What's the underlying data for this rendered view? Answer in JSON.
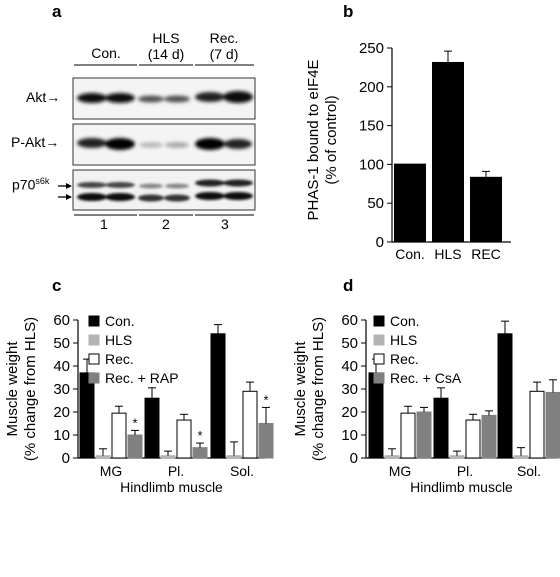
{
  "panels": {
    "a": {
      "letter": "a",
      "column_groups": [
        "Con.",
        "HLS\n(14 d)",
        "Rec.\n(7 d)"
      ],
      "column_group_lines": [
        [
          "Con."
        ],
        [
          "HLS",
          "(14 d)"
        ],
        [
          "Rec.",
          "(7 d)"
        ]
      ],
      "blots": [
        {
          "label": "Akt"
        },
        {
          "label": "P-Akt"
        },
        {
          "label": "p70",
          "superscript": "s6k"
        }
      ],
      "lanes": [
        "1",
        "2",
        "3"
      ]
    },
    "b": {
      "letter": "b"
    },
    "c": {
      "letter": "c"
    },
    "d": {
      "letter": "d"
    }
  },
  "chart_data": [
    {
      "panel": "b",
      "type": "bar",
      "categories": [
        "Con.",
        "HLS",
        "REC"
      ],
      "values": [
        101,
        232,
        84
      ],
      "errors": [
        0,
        14,
        7
      ],
      "ylabel": "PHAS-1 bound to eIF4E\n(% of control)",
      "ylabel_lines": [
        "PHAS-1 bound to eIF4E",
        "(% of control)"
      ],
      "ylim": [
        0,
        250
      ],
      "yticks": [
        0,
        50,
        100,
        150,
        200,
        250
      ],
      "color": "#000000"
    },
    {
      "panel": "c",
      "type": "bar",
      "categories": [
        "MG",
        "Pl.",
        "Sol."
      ],
      "series": [
        {
          "name": "Con.",
          "values": [
            37,
            26,
            54
          ],
          "errors": [
            6,
            4.5,
            4
          ],
          "color": "#000000",
          "stroke": "#000000"
        },
        {
          "name": "HLS",
          "values": [
            1,
            1,
            1
          ],
          "errors": [
            3,
            2,
            6
          ],
          "color": "#b3b3b3",
          "stroke": "#b3b3b3"
        },
        {
          "name": "Rec.",
          "values": [
            19.5,
            16.5,
            29
          ],
          "errors": [
            3,
            2.5,
            4
          ],
          "color": "#ffffff",
          "stroke": "#000000"
        },
        {
          "name": "Rec. + RAP",
          "values": [
            10,
            4.5,
            15
          ],
          "errors": [
            2,
            2,
            7
          ],
          "color": "#808080",
          "stroke": "#808080"
        }
      ],
      "annotations": [
        "*",
        "*",
        "*"
      ],
      "ylabel": "Muscle weight\n(% change from HLS)",
      "ylabel_lines": [
        "Muscle weight",
        "(% change from HLS)"
      ],
      "xlabel": "Hindlimb muscle",
      "ylim": [
        0,
        60
      ],
      "yticks": [
        0,
        10,
        20,
        30,
        40,
        50,
        60
      ],
      "legend": "top-left"
    },
    {
      "panel": "d",
      "type": "bar",
      "categories": [
        "MG",
        "Pl.",
        "Sol."
      ],
      "series": [
        {
          "name": "Con.",
          "values": [
            37,
            26,
            54
          ],
          "errors": [
            6,
            4.5,
            5.5
          ],
          "color": "#000000",
          "stroke": "#000000"
        },
        {
          "name": "HLS",
          "values": [
            1,
            1,
            1
          ],
          "errors": [
            3,
            2,
            3.5
          ],
          "color": "#b3b3b3",
          "stroke": "#b3b3b3"
        },
        {
          "name": "Rec.",
          "values": [
            19.5,
            16.5,
            29
          ],
          "errors": [
            3,
            2.5,
            4
          ],
          "color": "#ffffff",
          "stroke": "#000000"
        },
        {
          "name": "Rec. + CsA",
          "values": [
            20,
            18.5,
            28.5
          ],
          "errors": [
            2,
            2,
            5.5
          ],
          "color": "#808080",
          "stroke": "#808080"
        }
      ],
      "ylabel": "Muscle weight\n(% change from HLS)",
      "ylabel_lines": [
        "Muscle weight",
        "(% change from HLS)"
      ],
      "xlabel": "Hindlimb muscle",
      "ylim": [
        0,
        60
      ],
      "yticks": [
        0,
        10,
        20,
        30,
        40,
        50,
        60
      ],
      "legend": "top-left"
    }
  ]
}
